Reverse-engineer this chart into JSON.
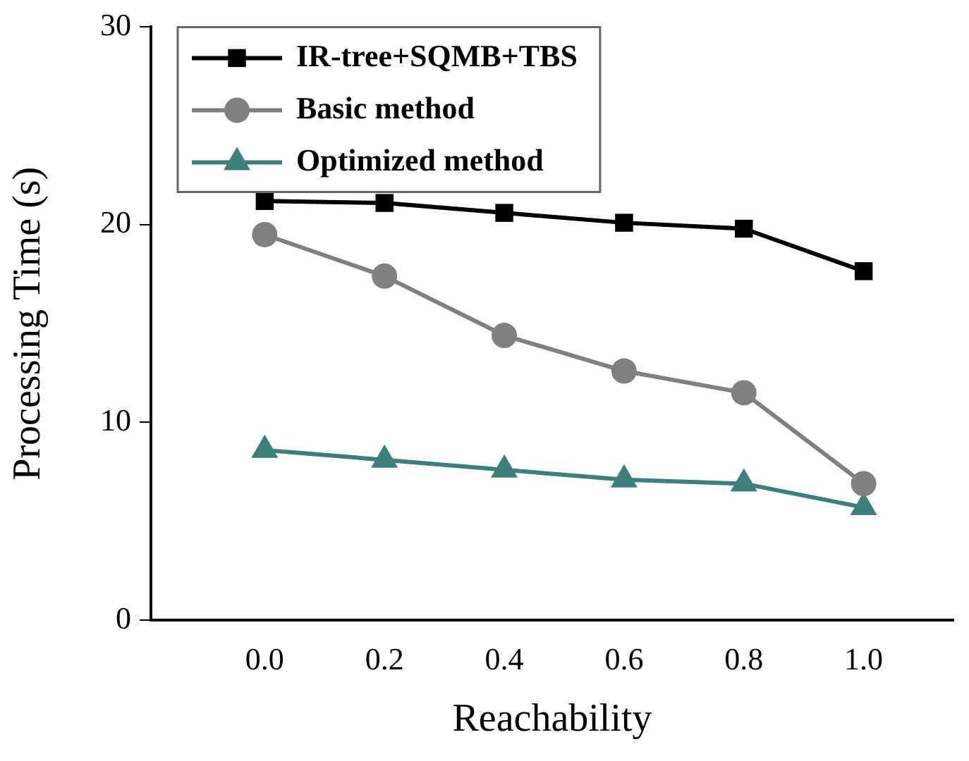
{
  "chart_data": {
    "type": "line",
    "xlabel": "Reachability",
    "ylabel": "Processing Time (s)",
    "x": [
      0.0,
      0.2,
      0.4,
      0.6,
      0.8,
      1.0
    ],
    "xlim": [
      -0.19,
      1.15
    ],
    "xticks": [
      {
        "value": 0.0,
        "label": "0.0"
      },
      {
        "value": 0.2,
        "label": "0.2"
      },
      {
        "value": 0.4,
        "label": "0.4"
      },
      {
        "value": 0.6,
        "label": "0.6"
      },
      {
        "value": 0.8,
        "label": "0.8"
      },
      {
        "value": 1.0,
        "label": "1.0"
      }
    ],
    "ylim": [
      0,
      30
    ],
    "yticks": [
      0,
      10,
      20,
      30
    ],
    "grid": false,
    "legend": "top left",
    "series": [
      {
        "name": "IR-tree+SQMB+TBS",
        "color": "#000000",
        "marker": "square",
        "values": [
          21.2,
          21.1,
          20.6,
          20.1,
          19.8,
          17.65
        ]
      },
      {
        "name": "Basic method",
        "color": "#808080",
        "marker": "circle",
        "values": [
          19.5,
          17.4,
          14.4,
          12.6,
          11.5,
          6.9
        ]
      },
      {
        "name": "Optimized method",
        "color": "#3f7f7b",
        "marker": "triangle",
        "values": [
          8.6,
          8.1,
          7.6,
          7.1,
          6.9,
          5.7
        ]
      }
    ]
  }
}
